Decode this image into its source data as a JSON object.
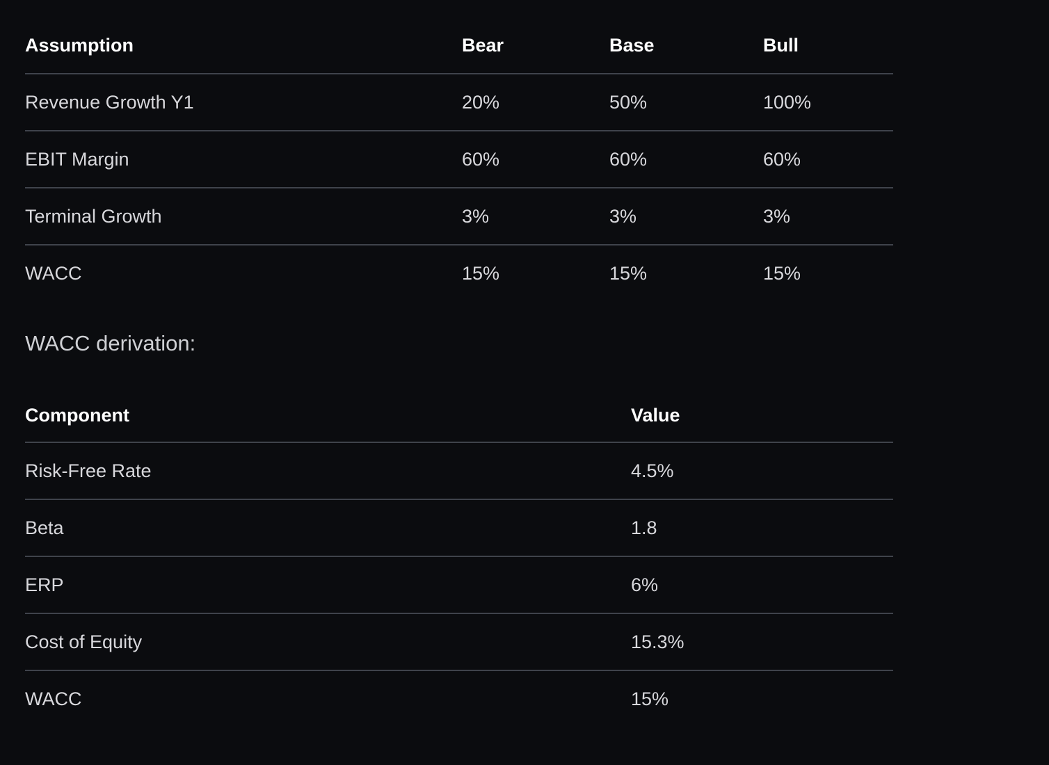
{
  "scenario_table": {
    "headers": [
      "Assumption",
      "Bear",
      "Base",
      "Bull"
    ],
    "rows": [
      [
        "Revenue Growth Y1",
        "20%",
        "50%",
        "100%"
      ],
      [
        "EBIT Margin",
        "60%",
        "60%",
        "60%"
      ],
      [
        "Terminal Growth",
        "3%",
        "3%",
        "3%"
      ],
      [
        "WACC",
        "15%",
        "15%",
        "15%"
      ]
    ]
  },
  "wacc_section": {
    "label": "WACC derivation:"
  },
  "wacc_table": {
    "headers": [
      "Component",
      "Value"
    ],
    "rows": [
      [
        "Risk-Free Rate",
        "4.5%"
      ],
      [
        "Beta",
        "1.8"
      ],
      [
        "ERP",
        "6%"
      ],
      [
        "Cost of Equity",
        "15.3%"
      ],
      [
        "WACC",
        "15%"
      ]
    ]
  },
  "colors": {
    "background": "#0b0c0f",
    "header_text": "#ffffff",
    "body_text": "#d8d8dc",
    "divider": "#3f434b"
  }
}
